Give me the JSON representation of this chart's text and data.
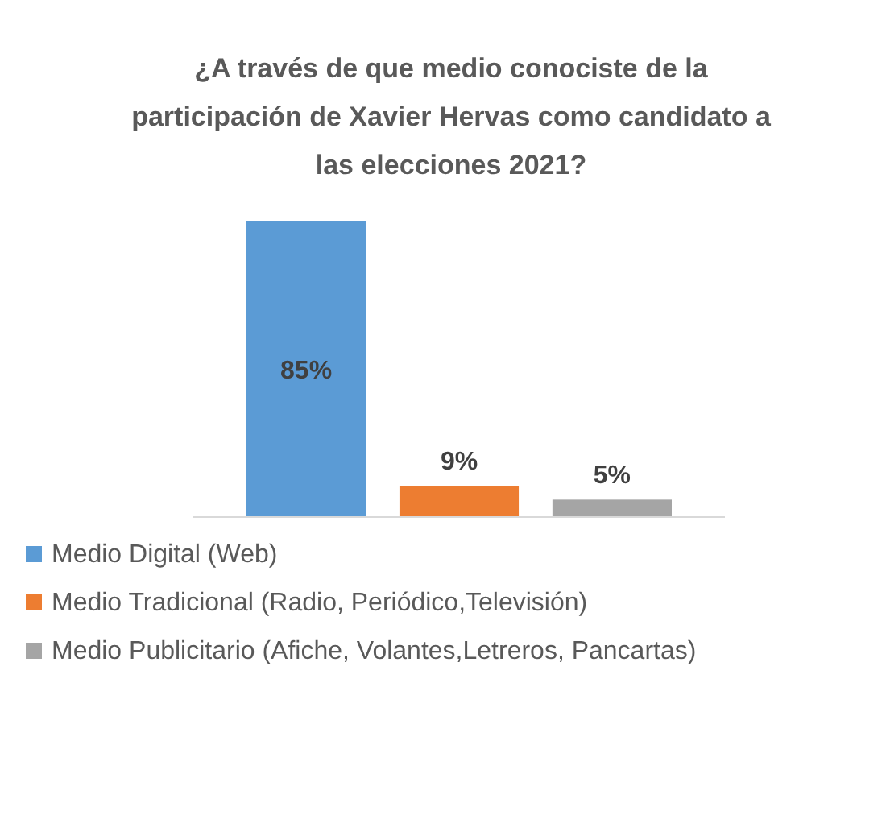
{
  "chart_data": {
    "type": "bar",
    "title": "¿A través de que medio conociste de la participación de Xavier Hervas como candidato a las elecciones 2021?",
    "categories": [
      null
    ],
    "series": [
      {
        "name": "Medio Digital (Web)",
        "color": "#5b9bd5",
        "values": [
          85
        ],
        "value_labels": [
          "85%"
        ]
      },
      {
        "name": "Medio Tradicional (Radio, Periódico,Televisión)",
        "color": "#ed7d31",
        "values": [
          9
        ],
        "value_labels": [
          "9%"
        ]
      },
      {
        "name": "Medio Publicitario (Afiche, Volantes,Letreros, Pancartas)",
        "color": "#a5a5a5",
        "values": [
          5
        ],
        "value_labels": [
          "5%"
        ]
      }
    ],
    "legend": "bottom",
    "grid": false
  }
}
